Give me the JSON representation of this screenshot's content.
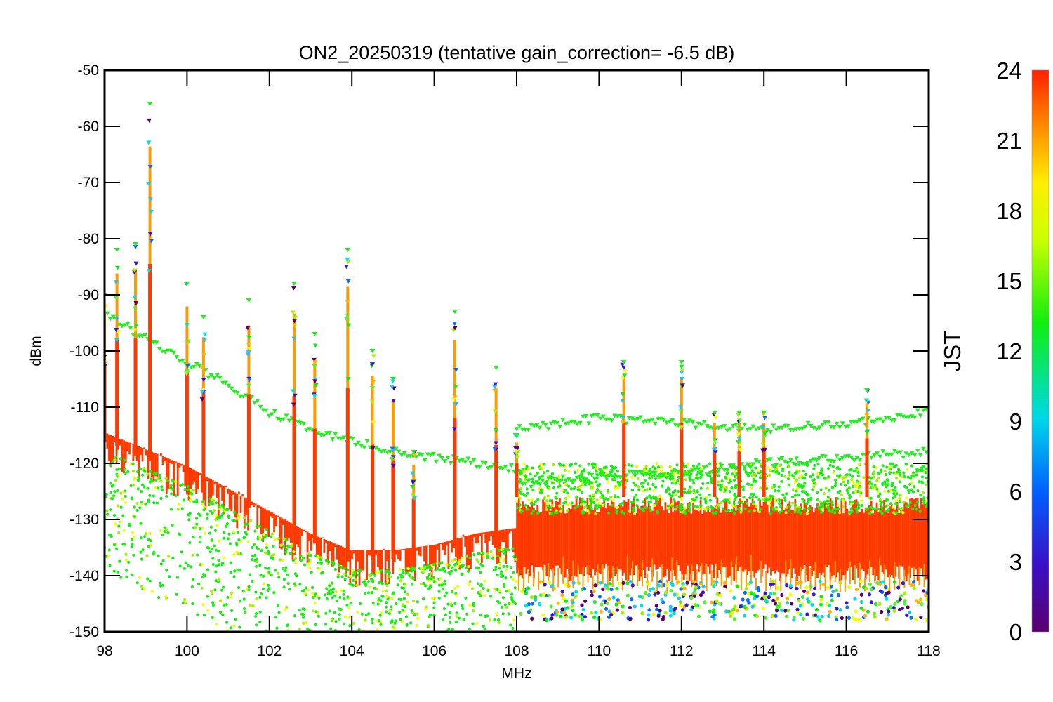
{
  "chart_data": {
    "type": "scatter",
    "title": "ON2_20250319 (tentative gain_correction= -6.5 dB)",
    "xlabel": "MHz",
    "ylabel": "dBm",
    "xlim": [
      98,
      118
    ],
    "ylim": [
      -150,
      -50
    ],
    "xticks": [
      "98",
      "100",
      "102",
      "104",
      "106",
      "108",
      "110",
      "112",
      "114",
      "116",
      "118"
    ],
    "yticks": [
      "-50",
      "-60",
      "-70",
      "-80",
      "-90",
      "-100",
      "-110",
      "-120",
      "-130",
      "-140",
      "-150"
    ],
    "grid": false,
    "colorbar": {
      "label": "JST",
      "range": [
        0,
        24
      ],
      "ticks": [
        "0",
        "3",
        "6",
        "9",
        "12",
        "15",
        "18",
        "21",
        "24"
      ],
      "colormap": "rainbow (purple-blue-cyan-green-yellow-orange-red)"
    },
    "noise_floor_below_108MHz": [
      {
        "x": 98.0,
        "y": -116
      },
      {
        "x": 99.0,
        "y": -119
      },
      {
        "x": 100.0,
        "y": -122
      },
      {
        "x": 101.0,
        "y": -126
      },
      {
        "x": 102.0,
        "y": -130
      },
      {
        "x": 103.0,
        "y": -134
      },
      {
        "x": 104.0,
        "y": -137
      },
      {
        "x": 105.0,
        "y": -137
      },
      {
        "x": 106.0,
        "y": -136
      },
      {
        "x": 107.0,
        "y": -134
      },
      {
        "x": 108.0,
        "y": -133
      }
    ],
    "noise_floor_above_108MHz": {
      "center": -133,
      "min": -145,
      "max": -126
    },
    "upper_envelope_traces": [
      {
        "x": [
          98.0,
          99.0,
          100.0,
          101.0,
          102.0,
          103.0,
          104.0,
          105.0,
          106.0,
          107.0,
          108.0
        ],
        "y": [
          -93,
          -98,
          -102,
          -106,
          -111,
          -114,
          -116,
          -118,
          -119,
          -120,
          -121
        ]
      },
      {
        "x": [
          108.0,
          110.0,
          112.0,
          114.0,
          116.0,
          118.0
        ],
        "y": [
          -114,
          -112,
          -113,
          -114,
          -113,
          -111
        ]
      },
      {
        "x": [
          108.0,
          110.0,
          112.0,
          114.0,
          116.0,
          118.0
        ],
        "y": [
          -124,
          -122,
          -122,
          -120,
          -119,
          -118
        ]
      }
    ],
    "peaks": [
      {
        "x": 98.0,
        "y": -90
      },
      {
        "x": 98.3,
        "y": -82
      },
      {
        "x": 98.75,
        "y": -81
      },
      {
        "x": 99.1,
        "y": -56
      },
      {
        "x": 100.0,
        "y": -88
      },
      {
        "x": 100.4,
        "y": -94
      },
      {
        "x": 101.5,
        "y": -91
      },
      {
        "x": 102.6,
        "y": -88
      },
      {
        "x": 103.1,
        "y": -97
      },
      {
        "x": 103.9,
        "y": -82
      },
      {
        "x": 104.5,
        "y": -100
      },
      {
        "x": 105.0,
        "y": -105
      },
      {
        "x": 105.5,
        "y": -118
      },
      {
        "x": 106.5,
        "y": -93
      },
      {
        "x": 107.5,
        "y": -103
      },
      {
        "x": 108.0,
        "y": -115
      },
      {
        "x": 110.6,
        "y": -102
      },
      {
        "x": 112.0,
        "y": -102
      },
      {
        "x": 112.8,
        "y": -111
      },
      {
        "x": 113.4,
        "y": -111
      },
      {
        "x": 114.0,
        "y": -111
      },
      {
        "x": 116.5,
        "y": -107
      }
    ]
  }
}
